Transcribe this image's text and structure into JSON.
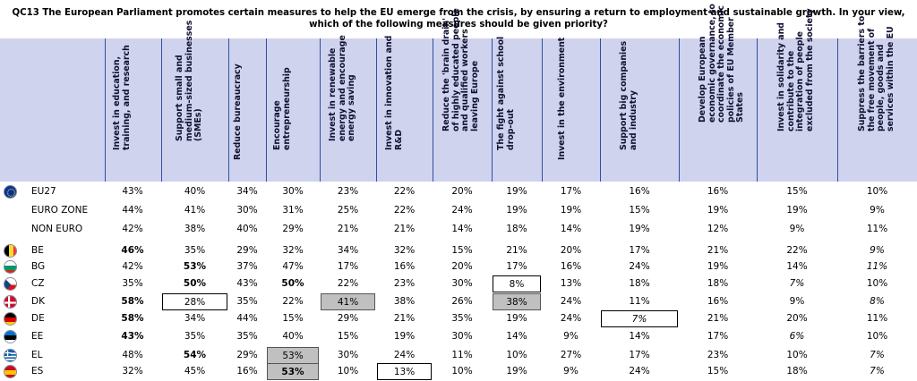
{
  "title": "QC13 The European Parliament promotes certain measures to help the EU emerge from the crisis, by ensuring a return to employment and sustainable growth. In your view, which of the following measures should be given priority?",
  "columns": [
    "Invest in education, training, and research",
    "Support small and medium-sized businesses (SMEs)",
    "Reduce bureaucracy",
    "Encourage entrepreneurship",
    "Invest in renewable energy and encourage energy saving",
    "Invest in innovation and R&D",
    "Reduce the 'brain drain' of highly educated people and qualified workers leaving Europe",
    "The fight against school drop-out",
    "Invest in the environment",
    "Support big companies and industry",
    "Develop European economic governance, to coordinate the economic policies of EU Member States",
    "Invest in solidarity and contribute to the integration of people excluded from the society",
    "Suppress the barriers to the free movement of people, goods and services within the EU"
  ],
  "rows": [
    {
      "label": "EU27",
      "flag": "eu",
      "values": [
        "43%",
        "40%",
        "34%",
        "30%",
        "23%",
        "22%",
        "20%",
        "19%",
        "17%",
        "16%",
        "16%",
        "15%",
        "10%"
      ],
      "styles": [
        "",
        "",
        "",
        "",
        "",
        "",
        "",
        "",
        "",
        "",
        "",
        "",
        ""
      ]
    },
    {
      "label": "EURO ZONE",
      "flag": "",
      "values": [
        "44%",
        "41%",
        "30%",
        "31%",
        "25%",
        "22%",
        "24%",
        "19%",
        "19%",
        "15%",
        "19%",
        "19%",
        "9%"
      ],
      "styles": [
        "",
        "",
        "",
        "",
        "",
        "",
        "",
        "",
        "",
        "",
        "",
        "",
        ""
      ]
    },
    {
      "label": "NON EURO",
      "flag": "",
      "values": [
        "42%",
        "38%",
        "40%",
        "29%",
        "21%",
        "21%",
        "14%",
        "18%",
        "14%",
        "19%",
        "12%",
        "9%",
        "11%"
      ],
      "styles": [
        "",
        "",
        "",
        "",
        "",
        "",
        "",
        "",
        "",
        "",
        "",
        "",
        ""
      ]
    },
    {
      "label": "BE",
      "flag": "be",
      "values": [
        "46%",
        "35%",
        "29%",
        "32%",
        "34%",
        "32%",
        "15%",
        "21%",
        "20%",
        "17%",
        "21%",
        "22%",
        "9%"
      ],
      "styles": [
        "bold",
        "",
        "",
        "",
        "",
        "",
        "",
        "",
        "",
        "",
        "",
        "",
        "italic"
      ]
    },
    {
      "label": "BG",
      "flag": "bg",
      "values": [
        "42%",
        "53%",
        "37%",
        "47%",
        "17%",
        "16%",
        "20%",
        "17%",
        "16%",
        "24%",
        "19%",
        "14%",
        "11%"
      ],
      "styles": [
        "",
        "bold",
        "",
        "",
        "",
        "",
        "",
        "",
        "",
        "",
        "",
        "",
        "italic"
      ]
    },
    {
      "label": "CZ",
      "flag": "cz",
      "values": [
        "35%",
        "50%",
        "43%",
        "50%",
        "22%",
        "23%",
        "30%",
        "8%",
        "13%",
        "18%",
        "18%",
        "7%",
        "10%"
      ],
      "styles": [
        "",
        "bold",
        "",
        "bold",
        "",
        "",
        "",
        "boxed",
        "",
        "",
        "",
        "italic",
        ""
      ]
    },
    {
      "label": "DK",
      "flag": "dk",
      "values": [
        "58%",
        "28%",
        "35%",
        "22%",
        "41%",
        "38%",
        "26%",
        "38%",
        "24%",
        "11%",
        "16%",
        "9%",
        "8%"
      ],
      "styles": [
        "bold",
        "boxed",
        "",
        "",
        "grey",
        "",
        "",
        "grey",
        "",
        "",
        "",
        "",
        "italic"
      ]
    },
    {
      "label": "DE",
      "flag": "de",
      "values": [
        "58%",
        "34%",
        "44%",
        "15%",
        "29%",
        "21%",
        "35%",
        "19%",
        "24%",
        "7%",
        "21%",
        "20%",
        "11%"
      ],
      "styles": [
        "bold",
        "",
        "",
        "",
        "",
        "",
        "",
        "",
        "",
        "boxed italic",
        "",
        "",
        ""
      ]
    },
    {
      "label": "EE",
      "flag": "ee",
      "values": [
        "43%",
        "35%",
        "35%",
        "40%",
        "15%",
        "19%",
        "30%",
        "14%",
        "9%",
        "14%",
        "17%",
        "6%",
        "10%"
      ],
      "styles": [
        "bold",
        "",
        "",
        "",
        "",
        "",
        "",
        "",
        "",
        "",
        "",
        "italic",
        ""
      ]
    },
    {
      "label": "EL",
      "flag": "el",
      "values": [
        "48%",
        "54%",
        "29%",
        "53%",
        "30%",
        "24%",
        "11%",
        "10%",
        "27%",
        "17%",
        "23%",
        "10%",
        "7%"
      ],
      "styles": [
        "",
        "bold",
        "",
        "grey",
        "",
        "",
        "",
        "",
        "",
        "",
        "",
        "",
        "italic"
      ]
    },
    {
      "label": "ES",
      "flag": "es",
      "values": [
        "32%",
        "45%",
        "16%",
        "53%",
        "10%",
        "13%",
        "10%",
        "19%",
        "9%",
        "24%",
        "15%",
        "18%",
        "7%"
      ],
      "styles": [
        "",
        "",
        "",
        "grey bold",
        "",
        "boxed",
        "",
        "",
        "",
        "",
        "",
        "",
        "italic"
      ]
    }
  ],
  "colors": {
    "header_band": "#cfd3ee",
    "highlight_grey": "#c0c0c0",
    "separator": "#3050a0"
  }
}
